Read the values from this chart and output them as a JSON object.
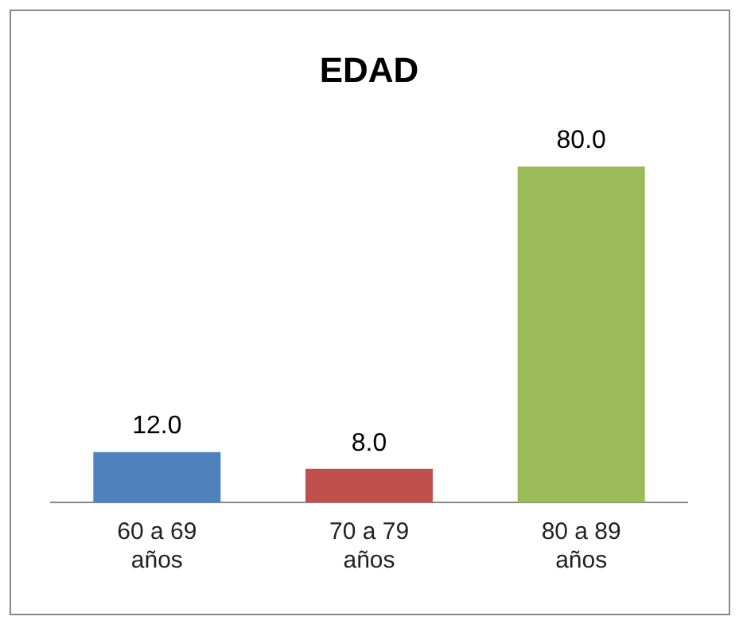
{
  "chart_data": {
    "type": "bar",
    "title": "EDAD",
    "categories": [
      "60 a 69 años",
      "70 a 79 años",
      "80 a 89 años"
    ],
    "values": [
      12,
      8,
      80
    ],
    "value_labels": [
      "12.0",
      "8.0",
      "80.0"
    ],
    "colors": [
      "#4f81bd",
      "#c0504d",
      "#9bbb59"
    ],
    "grid": false,
    "legend": false
  }
}
